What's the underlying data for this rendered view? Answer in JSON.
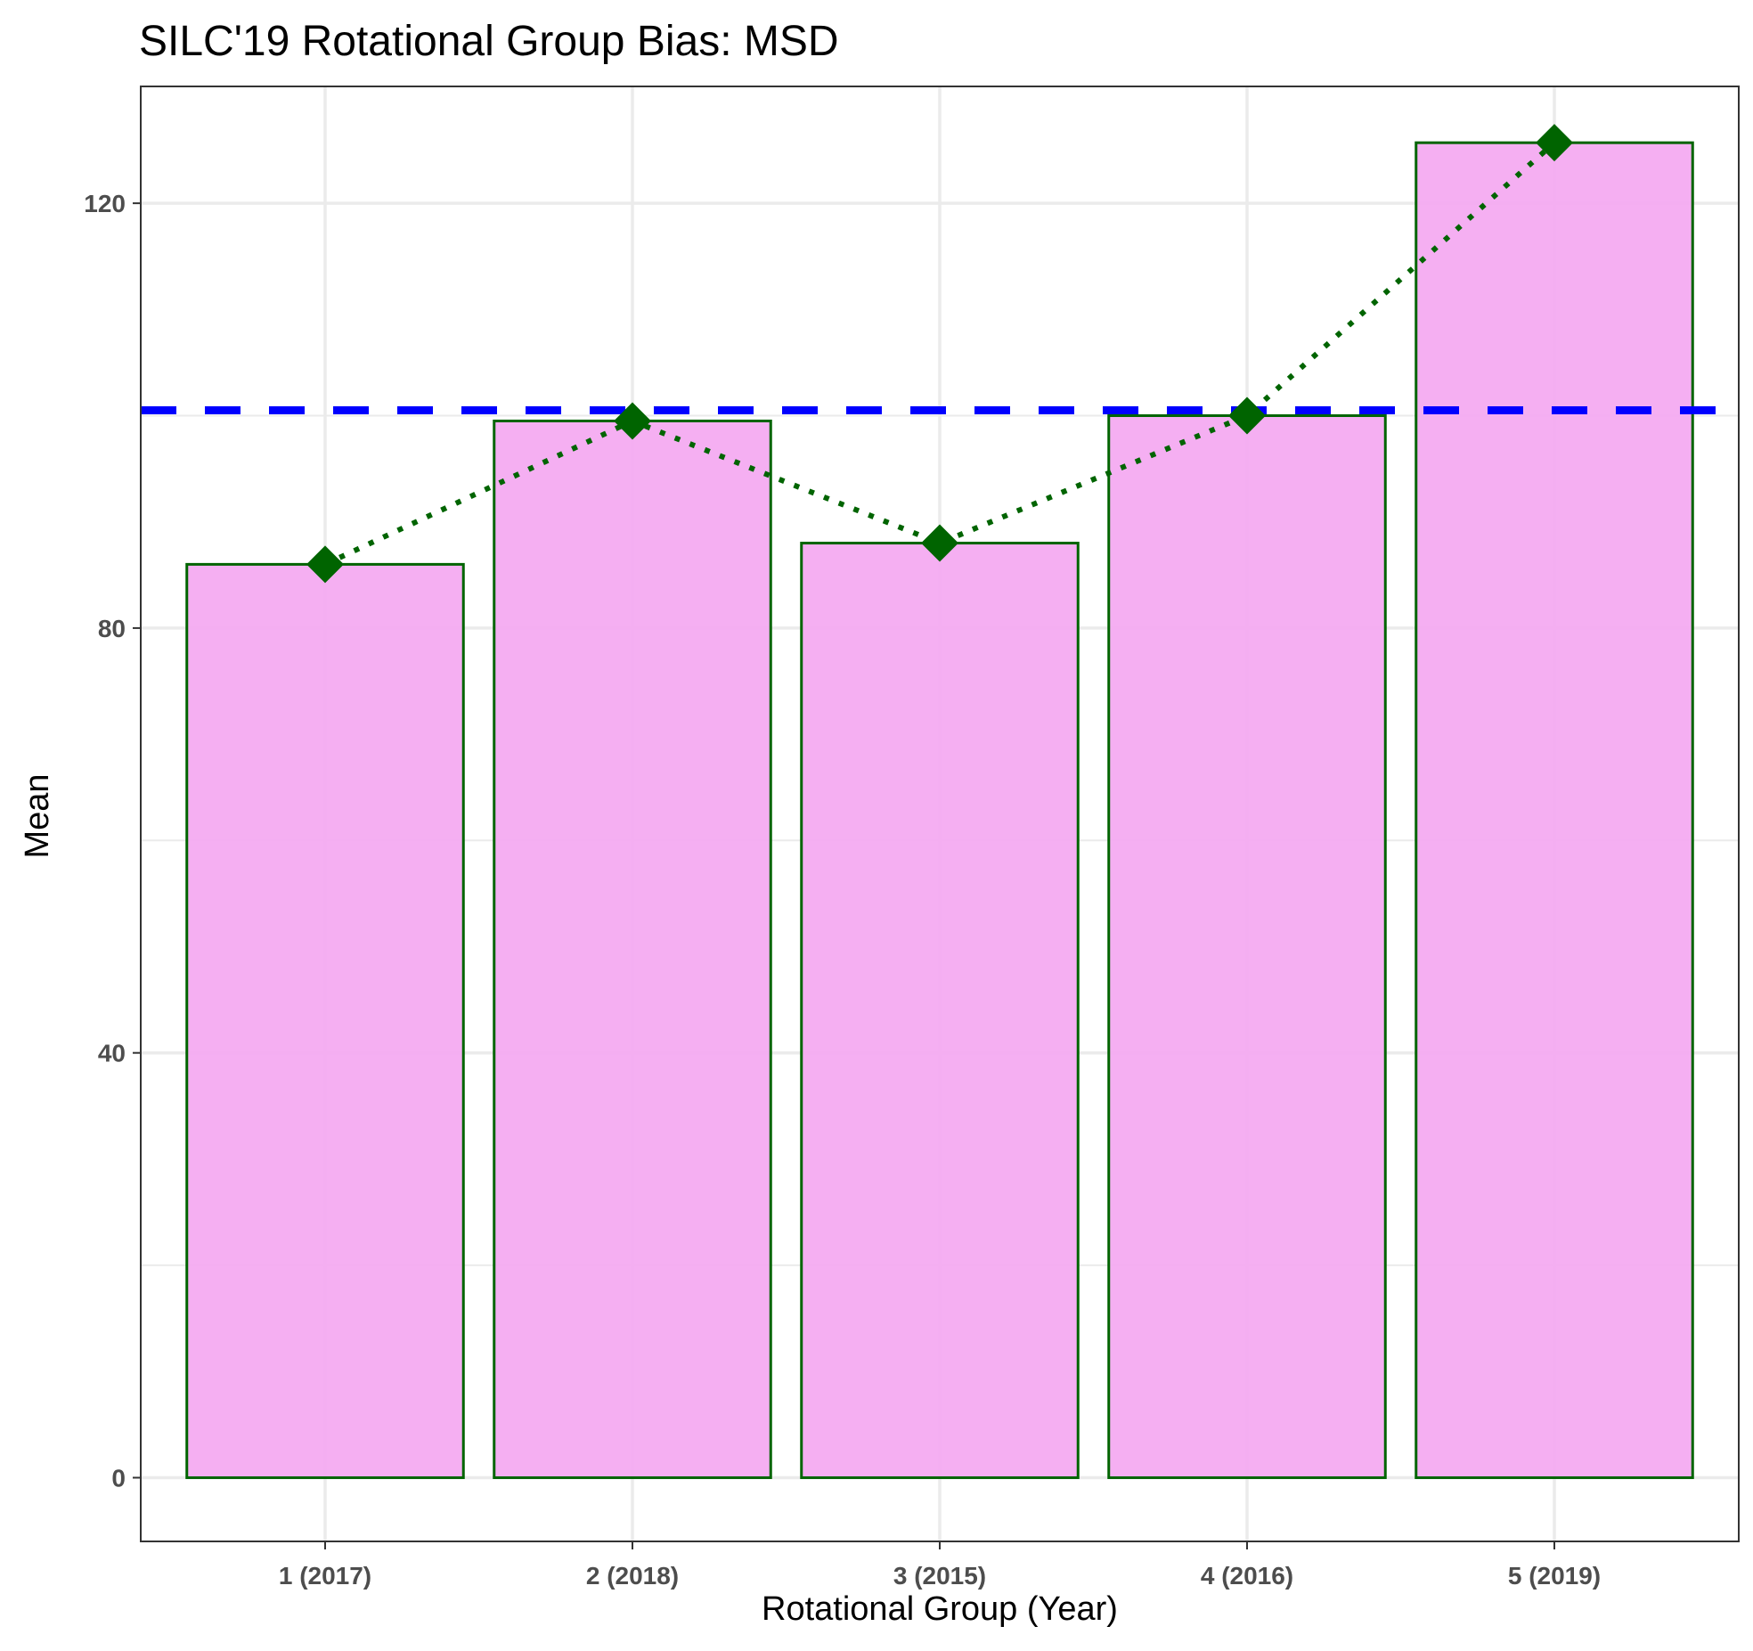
{
  "chart_data": {
    "type": "bar",
    "title": "SILC'19 Rotational Group Bias: MSD",
    "xlabel": "Rotational Group (Year)",
    "ylabel": "Mean",
    "categories": [
      "1 (2017)",
      "2 (2018)",
      "3 (2015)",
      "4 (2016)",
      "5 (2019)"
    ],
    "values": [
      86,
      99.5,
      88,
      100,
      125.7
    ],
    "reference_line": {
      "value": 100.5,
      "style": "dashed",
      "color": "#0000ff"
    },
    "trend_line": {
      "style": "dotted",
      "color": "#006400",
      "marker": "diamond"
    },
    "ylim": [
      -6,
      131
    ],
    "yticks": [
      0,
      40,
      80,
      120
    ],
    "grid": true,
    "colors": {
      "bar_fill": "#f4a8f1",
      "bar_stroke": "#006400",
      "marker": "#006400",
      "grid": "#ebebeb",
      "panel_border": "#333333"
    }
  }
}
